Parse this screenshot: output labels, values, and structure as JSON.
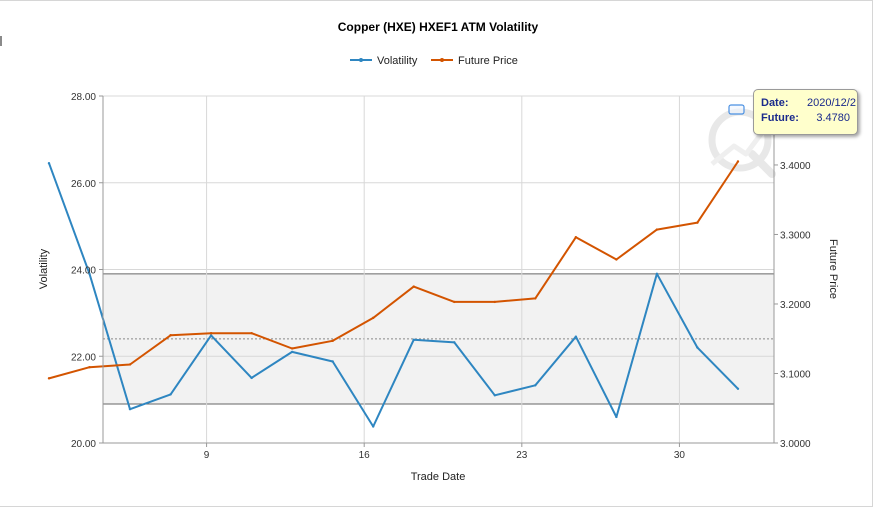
{
  "chart_data": {
    "type": "line",
    "title": "Copper (HXE) HXEF1 ATM Volatility",
    "xlabel": "Trade Date",
    "ylabel": "Volatility",
    "y2label": "Future Price",
    "x_tick_labels": [
      {
        "x": 9,
        "label": "9"
      },
      {
        "x": 16,
        "label": "16"
      },
      {
        "x": 23,
        "label": "23"
      },
      {
        "x": 30,
        "label": "30"
      }
    ],
    "xlim": [
      4.4,
      34.2
    ],
    "ylim": [
      20,
      28
    ],
    "y_ticks": [
      {
        "v": 20,
        "label": "20.00"
      },
      {
        "v": 22,
        "label": "22.00"
      },
      {
        "v": 24,
        "label": "24.00"
      },
      {
        "v": 26,
        "label": "26.00"
      },
      {
        "v": 28,
        "label": "28.00"
      }
    ],
    "y2lim": [
      3.0,
      3.4992
    ],
    "y2_ticks": [
      {
        "v": 3.0,
        "label": "3.0000"
      },
      {
        "v": 3.1,
        "label": "3.1000"
      },
      {
        "v": 3.2,
        "label": "3.2000"
      },
      {
        "v": 3.3,
        "label": "3.3000"
      },
      {
        "v": 3.4,
        "label": "3.4000"
      }
    ],
    "grid": true,
    "legend_position": "top-center",
    "band": {
      "from": 20.9,
      "to": 23.9,
      "mid": 22.4
    },
    "series": [
      {
        "name": "Volatility",
        "axis": "left",
        "color": "#2e86c1",
        "x": [
          2,
          3.8,
          5.6,
          7.4,
          9.2,
          11,
          12.8,
          14.6,
          16.4,
          18.2,
          20,
          21.8,
          23.6,
          25.4,
          27.2,
          29,
          30.8,
          32.6
        ],
        "values": [
          26.45,
          23.9,
          20.78,
          21.12,
          22.48,
          21.5,
          22.1,
          21.88,
          20.38,
          22.38,
          22.32,
          21.1,
          21.33,
          22.45,
          20.6,
          23.9,
          22.2,
          21.25
        ]
      },
      {
        "name": "Future Price",
        "axis": "right",
        "color": "#d35400",
        "x": [
          2,
          3.8,
          5.6,
          7.4,
          9.2,
          11,
          12.8,
          14.6,
          16.4,
          18.2,
          20,
          21.8,
          23.6,
          25.4,
          27.2,
          29,
          30.8,
          32.6
        ],
        "values": [
          3.093,
          3.109,
          3.113,
          3.155,
          3.158,
          3.158,
          3.136,
          3.147,
          3.18,
          3.225,
          3.203,
          3.203,
          3.208,
          3.296,
          3.264,
          3.307,
          3.317,
          3.405
        ]
      }
    ],
    "tooltip": {
      "date_key": "Date:",
      "date_value": "2020/12/2",
      "future_key": "Future:",
      "future_value": "3.4780"
    }
  }
}
